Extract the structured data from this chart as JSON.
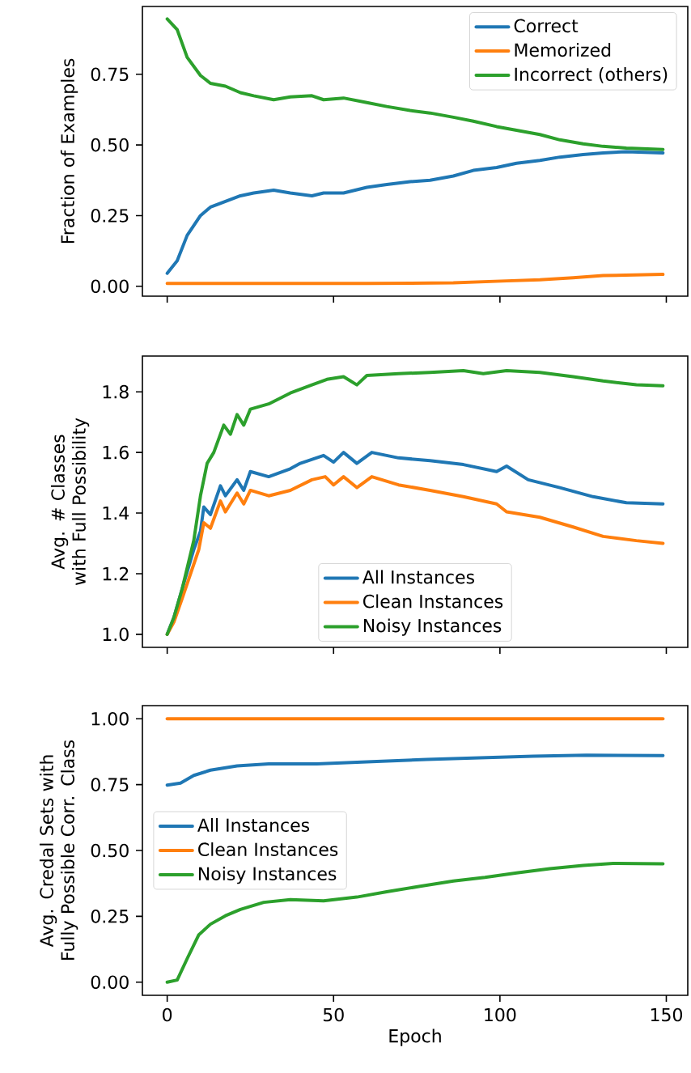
{
  "chart_data": [
    {
      "type": "line",
      "ylabel": "Fraction of Examples",
      "xlim": [
        -7.45,
        156.45
      ],
      "xticks": [
        0,
        50,
        100,
        150
      ],
      "ylim": [
        -0.035,
        0.99
      ],
      "yticks": [
        {
          "value": 0.0,
          "label": "0.00"
        },
        {
          "value": 0.25,
          "label": "0.25"
        },
        {
          "value": 0.5,
          "label": "0.50"
        },
        {
          "value": 0.75,
          "label": "0.75"
        }
      ],
      "tick_labels": "y",
      "legend": "top right",
      "series": [
        {
          "name": "Correct",
          "color": "#1f77b4",
          "x": [
            0,
            3,
            6,
            10,
            13,
            17.5,
            22,
            26,
            32,
            37,
            43.5,
            47,
            53,
            60,
            66,
            73,
            79,
            86,
            92,
            99,
            105,
            112,
            118,
            125,
            131,
            138,
            149
          ],
          "values": [
            0.046,
            0.09,
            0.18,
            0.25,
            0.28,
            0.3,
            0.32,
            0.33,
            0.34,
            0.33,
            0.32,
            0.33,
            0.33,
            0.35,
            0.36,
            0.37,
            0.375,
            0.39,
            0.41,
            0.42,
            0.435,
            0.445,
            0.457,
            0.466,
            0.472,
            0.476,
            0.472
          ]
        },
        {
          "name": "Memorized",
          "color": "#ff7f0e",
          "x": [
            0,
            30,
            60,
            86,
            102,
            112,
            122,
            131,
            149
          ],
          "values": [
            0.01,
            0.01,
            0.01,
            0.012,
            0.019,
            0.023,
            0.03,
            0.038,
            0.042
          ]
        },
        {
          "name": "Incorrect (others)",
          "color": "#2ca02c",
          "x": [
            0,
            3,
            6,
            10,
            13,
            17.5,
            22,
            26,
            32,
            37,
            43.5,
            47,
            53,
            60,
            66,
            73,
            79,
            86,
            92,
            99,
            105,
            112,
            118,
            125,
            131,
            138,
            149
          ],
          "values": [
            0.946,
            0.908,
            0.81,
            0.746,
            0.718,
            0.708,
            0.685,
            0.674,
            0.66,
            0.67,
            0.674,
            0.66,
            0.666,
            0.65,
            0.636,
            0.622,
            0.613,
            0.598,
            0.584,
            0.565,
            0.552,
            0.537,
            0.518,
            0.504,
            0.495,
            0.489,
            0.484
          ]
        }
      ]
    },
    {
      "type": "line",
      "ylabel": "Avg. # Classes with Full Possibility",
      "xlim": [
        -7.45,
        156.45
      ],
      "xticks": [
        0,
        50,
        100,
        150
      ],
      "ylim": [
        0.957,
        1.918
      ],
      "yticks": [
        {
          "value": 1.0,
          "label": "1.0"
        },
        {
          "value": 1.2,
          "label": "1.2"
        },
        {
          "value": 1.4,
          "label": "1.4"
        },
        {
          "value": 1.6,
          "label": "1.6"
        },
        {
          "value": 1.8,
          "label": "1.8"
        }
      ],
      "tick_labels": "y",
      "legend": "bottom",
      "series": [
        {
          "name": "All Instances",
          "color": "#1f77b4",
          "x": [
            0,
            2,
            4.5,
            8,
            10,
            11,
            13,
            16,
            17.5,
            21,
            23,
            25,
            30.5,
            37,
            40,
            47,
            50,
            53,
            57,
            61.5,
            69.5,
            79,
            89,
            99,
            102,
            108.5,
            118,
            128,
            138,
            149
          ],
          "values": [
            1.0,
            1.055,
            1.15,
            1.28,
            1.34,
            1.42,
            1.395,
            1.49,
            1.457,
            1.51,
            1.475,
            1.537,
            1.52,
            1.546,
            1.564,
            1.59,
            1.568,
            1.6,
            1.564,
            1.6,
            1.582,
            1.573,
            1.56,
            1.537,
            1.555,
            1.51,
            1.484,
            1.454,
            1.434,
            1.43
          ]
        },
        {
          "name": "Clean Instances",
          "color": "#ff7f0e",
          "x": [
            0,
            2,
            4.5,
            9.5,
            11,
            13,
            16,
            17.5,
            21,
            23,
            25,
            30.5,
            37,
            43.5,
            47.5,
            50,
            53,
            57,
            61.5,
            69.5,
            79,
            89,
            99,
            102,
            112,
            122,
            131,
            141,
            149
          ],
          "values": [
            1.0,
            1.04,
            1.118,
            1.28,
            1.368,
            1.35,
            1.44,
            1.404,
            1.466,
            1.43,
            1.475,
            1.457,
            1.475,
            1.51,
            1.52,
            1.493,
            1.52,
            1.484,
            1.52,
            1.493,
            1.475,
            1.454,
            1.43,
            1.404,
            1.386,
            1.354,
            1.323,
            1.309,
            1.3
          ]
        },
        {
          "name": "Noisy Instances",
          "color": "#2ca02c",
          "x": [
            0,
            2,
            4.5,
            8,
            10,
            12,
            14,
            17,
            19,
            21,
            23,
            25,
            30.5,
            37,
            43.5,
            48,
            53,
            57,
            60,
            69.5,
            79,
            89,
            95,
            102,
            112,
            122,
            131,
            141,
            149
          ],
          "values": [
            1.0,
            1.055,
            1.15,
            1.31,
            1.457,
            1.564,
            1.6,
            1.69,
            1.66,
            1.725,
            1.69,
            1.743,
            1.76,
            1.796,
            1.823,
            1.841,
            1.85,
            1.823,
            1.854,
            1.86,
            1.864,
            1.87,
            1.86,
            1.87,
            1.864,
            1.85,
            1.836,
            1.823,
            1.82
          ]
        }
      ]
    },
    {
      "type": "line",
      "ylabel": "Avg. Credal Sets with Fully Possible Corr. Class",
      "xlabel": "Epoch",
      "xlim": [
        -7.45,
        156.45
      ],
      "xticks": [
        0,
        50,
        100,
        150
      ],
      "ylim": [
        -0.05,
        1.05
      ],
      "yticks": [
        {
          "value": 0.0,
          "label": "0.00"
        },
        {
          "value": 0.25,
          "label": "0.25"
        },
        {
          "value": 0.5,
          "label": "0.50"
        },
        {
          "value": 0.75,
          "label": "0.75"
        },
        {
          "value": 1.0,
          "label": "1.00"
        }
      ],
      "legend": "left",
      "series": [
        {
          "name": "All Instances",
          "color": "#1f77b4",
          "x": [
            0,
            4,
            8,
            13,
            21,
            30.5,
            45,
            61.5,
            78,
            94,
            110,
            126,
            149
          ],
          "values": [
            0.748,
            0.756,
            0.785,
            0.805,
            0.821,
            0.829,
            0.829,
            0.837,
            0.846,
            0.852,
            0.858,
            0.862,
            0.86
          ]
        },
        {
          "name": "Clean Instances",
          "color": "#ff7f0e",
          "x": [
            0,
            149
          ],
          "values": [
            1.0,
            1.0
          ]
        },
        {
          "name": "Noisy Instances",
          "color": "#2ca02c",
          "x": [
            0,
            3,
            6,
            9.5,
            13,
            17.5,
            22,
            29,
            37,
            47,
            57,
            66,
            76,
            86,
            95.5,
            105,
            115,
            125,
            134,
            149
          ],
          "values": [
            0.0,
            0.008,
            0.089,
            0.18,
            0.22,
            0.252,
            0.276,
            0.303,
            0.313,
            0.309,
            0.323,
            0.343,
            0.364,
            0.384,
            0.398,
            0.415,
            0.431,
            0.443,
            0.451,
            0.449
          ]
        }
      ]
    }
  ]
}
